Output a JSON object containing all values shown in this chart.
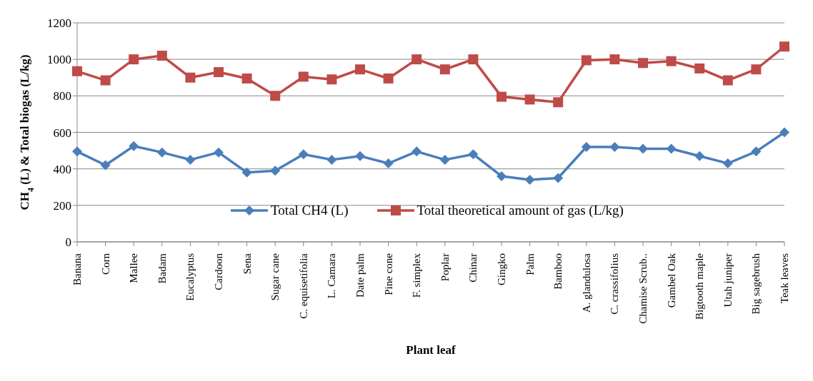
{
  "chart_data": {
    "type": "line",
    "xlabel": "Plant leaf",
    "ylabel": "CH$_{4}$ (L) & Total biogas (L/kg)",
    "categories": [
      "Banana",
      "Corn",
      "Mallee",
      "Badam",
      "Eucalyptus",
      "Cardoon",
      "Sena",
      "Sugar cane",
      "C. equisetifolia",
      "L. Camara",
      "Date palm",
      "Pine cone",
      "F. simplex",
      "Poplar",
      "Chinar",
      "Gingko",
      "Palm",
      "Bamboo",
      "A. glandulosa",
      "C. crassifolius",
      "Chamise Scrub..",
      "Gambel Oak",
      "Bigtooth maple",
      "Utah juniper",
      "Big sagebrush",
      "Teak leaves"
    ],
    "series": [
      {
        "name": "Total CH4 (L)",
        "color": "#4a7ebb",
        "marker": "diamond",
        "values": [
          495,
          420,
          525,
          490,
          450,
          490,
          380,
          390,
          480,
          450,
          470,
          430,
          495,
          450,
          480,
          360,
          340,
          350,
          520,
          520,
          510,
          510,
          470,
          430,
          495,
          600
        ]
      },
      {
        "name": "Total theoretical amount of gas (L/kg)",
        "color": "#be4b48",
        "marker": "square",
        "values": [
          935,
          885,
          1000,
          1020,
          900,
          930,
          895,
          800,
          905,
          890,
          945,
          895,
          1000,
          945,
          1000,
          795,
          780,
          765,
          995,
          1000,
          980,
          990,
          950,
          885,
          945,
          1070
        ]
      }
    ],
    "ylim": [
      0,
      1200
    ],
    "yticks": [
      0,
      200,
      400,
      600,
      800,
      1000,
      1200
    ],
    "grid": "y",
    "legend": "bottom",
    "line_style": "solid"
  }
}
